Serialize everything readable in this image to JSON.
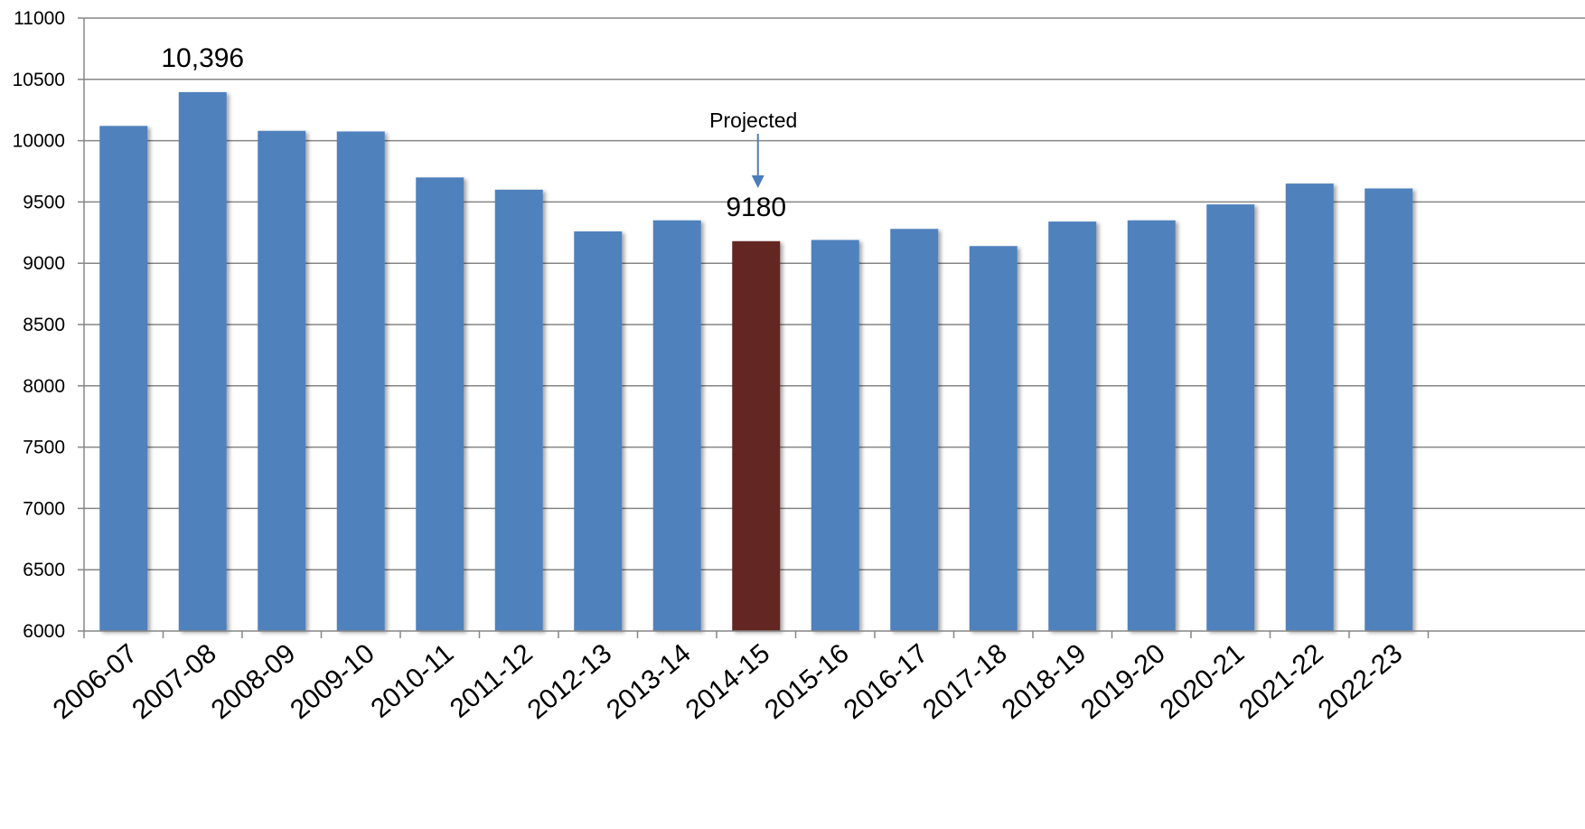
{
  "chart_data": {
    "type": "bar",
    "title": "",
    "xlabel": "",
    "ylabel": "",
    "categories": [
      "2006-07",
      "2007-08",
      "2008-09",
      "2009-10",
      "2010-11",
      "2011-12",
      "2012-13",
      "2013-14",
      "2014-15",
      "2015-16",
      "2016-17",
      "2017-18",
      "2018-19",
      "2019-20",
      "2020-21",
      "2021-22",
      "2022-23"
    ],
    "values": [
      10120,
      10396,
      10080,
      10075,
      9700,
      9600,
      9260,
      9350,
      9180,
      9190,
      9280,
      9140,
      9340,
      9350,
      9480,
      9650,
      9610
    ],
    "ylim": [
      6000,
      11000
    ],
    "yticks": [
      6000,
      6500,
      7000,
      7500,
      8000,
      8500,
      9000,
      9500,
      10000,
      10500,
      11000
    ],
    "grid": true,
    "legend": "none",
    "colors": {
      "bar": "#4F81BD",
      "highlight": "#632523",
      "grid": "#868686",
      "axis": "#868686",
      "arrow": "#4A7EBB"
    },
    "highlight_category": "2014-15",
    "data_labels": [
      {
        "category": "2007-08",
        "text": "10,396"
      },
      {
        "category": "2014-15",
        "text": "9180"
      }
    ],
    "annotations": [
      {
        "category": "2014-15",
        "text": "Projected",
        "arrow": "down"
      }
    ]
  }
}
